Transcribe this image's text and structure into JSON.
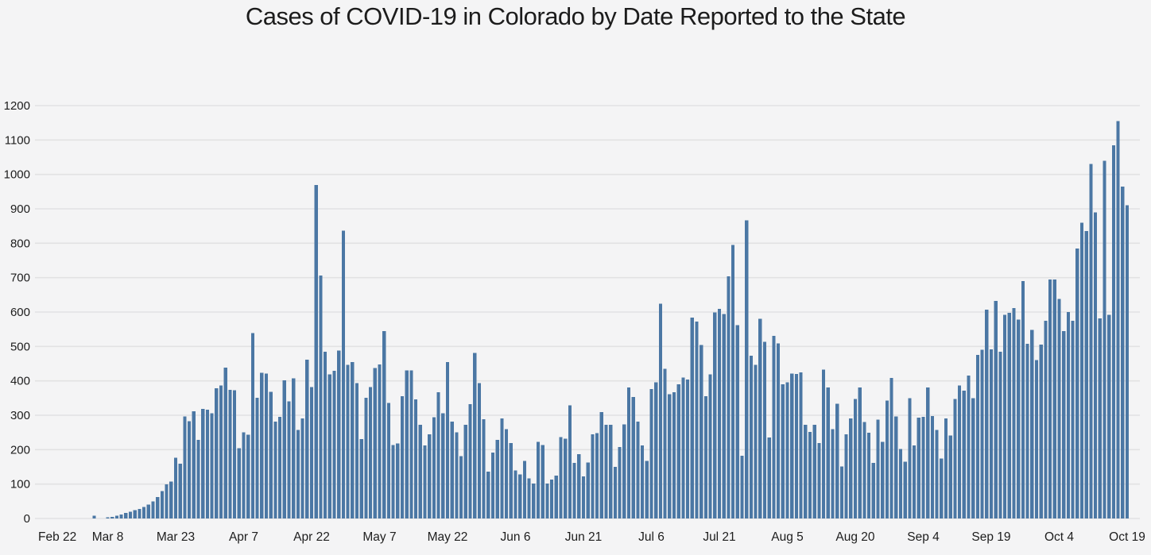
{
  "page": {
    "background_color": "#f4f4f5"
  },
  "header": {
    "title": "Cases of COVID-19 in Colorado by Date Reported to the State"
  },
  "chart_data": {
    "type": "bar",
    "title": "Cases of COVID-19 in Colorado by Date Reported to the State",
    "xlabel": "",
    "ylabel": "",
    "x_start_date": "Feb 22",
    "x_end_date": "Oct 19",
    "x_interval_days": 1,
    "x_tick_labels": [
      "Feb 22",
      "Mar 8",
      "Mar 23",
      "Apr 7",
      "Apr 22",
      "May 7",
      "May 22",
      "Jun 6",
      "Jun 21",
      "Jul 6",
      "Jul 21",
      "Aug 5",
      "Aug 20",
      "Sep 4",
      "Sep 19",
      "Oct 4",
      "Oct 19"
    ],
    "x_tick_day_index": [
      0,
      15,
      30,
      45,
      60,
      75,
      90,
      105,
      120,
      135,
      150,
      165,
      180,
      195,
      210,
      225,
      240
    ],
    "y_ticks": [
      0,
      100,
      200,
      300,
      400,
      500,
      600,
      700,
      800,
      900,
      1000,
      1100,
      1200
    ],
    "ylim": [
      0,
      1250
    ],
    "grid": true,
    "legend": false,
    "bar_color": "#4b77a4",
    "grid_color": "#e2e2e3",
    "text_color": "#1d1d1d",
    "background_color": "#f4f4f5",
    "values": [
      0,
      0,
      0,
      0,
      0,
      0,
      0,
      0,
      0,
      0,
      0,
      0,
      8,
      0,
      0,
      3,
      5,
      8,
      12,
      16,
      20,
      24,
      28,
      33,
      40,
      50,
      62,
      80,
      99,
      107,
      177,
      159,
      297,
      283,
      312,
      229,
      318,
      316,
      306,
      378,
      386,
      438,
      374,
      373,
      204,
      250,
      244,
      539,
      351,
      423,
      421,
      368,
      281,
      295,
      402,
      340,
      407,
      257,
      291,
      461,
      382,
      969,
      706,
      485,
      419,
      429,
      488,
      837,
      446,
      455,
      394,
      231,
      351,
      382,
      437,
      448,
      545,
      336,
      214,
      218,
      355,
      430,
      430,
      346,
      272,
      212,
      245,
      294,
      367,
      306,
      455,
      281,
      250,
      181,
      272,
      332,
      481,
      394,
      288,
      136,
      192,
      229,
      291,
      260,
      219,
      140,
      128,
      167,
      117,
      101,
      223,
      213,
      101,
      113,
      125,
      236,
      232,
      329,
      161,
      187,
      122,
      163,
      245,
      248,
      309,
      272,
      272,
      150,
      208,
      274,
      381,
      353,
      282,
      212,
      167,
      376,
      396,
      624,
      435,
      361,
      367,
      390,
      410,
      404,
      584,
      572,
      504,
      355,
      419,
      599,
      609,
      594,
      704,
      795,
      562,
      182,
      867,
      473,
      446,
      580,
      514,
      235,
      531,
      509,
      390,
      396,
      421,
      420,
      425,
      272,
      252,
      272,
      219,
      433,
      381,
      260,
      334,
      151,
      245,
      291,
      347,
      381,
      280,
      249,
      161,
      287,
      223,
      343,
      409,
      297,
      202,
      165,
      350,
      212,
      293,
      295,
      381,
      298,
      257,
      174,
      291,
      241,
      347,
      386,
      371,
      415,
      350,
      475,
      490,
      607,
      491,
      632,
      485,
      592,
      598,
      612,
      578,
      690,
      508,
      548,
      460,
      505,
      575,
      695,
      695,
      638,
      545,
      600,
      575,
      785,
      860,
      835,
      1030,
      890,
      582,
      1040,
      592,
      1085,
      1155,
      965,
      910
    ]
  }
}
